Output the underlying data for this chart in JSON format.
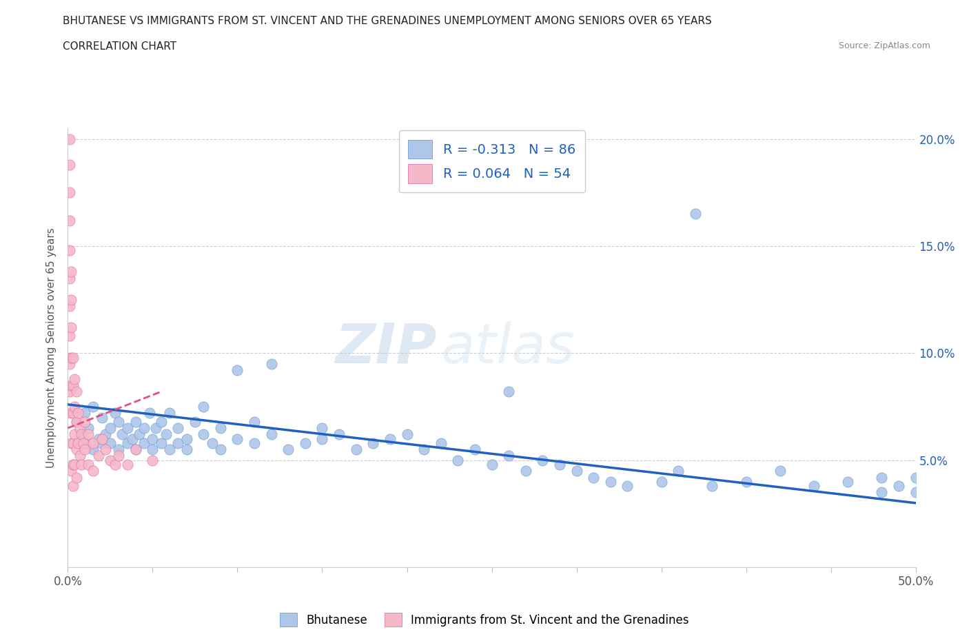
{
  "title_line1": "BHUTANESE VS IMMIGRANTS FROM ST. VINCENT AND THE GRENADINES UNEMPLOYMENT AMONG SENIORS OVER 65 YEARS",
  "title_line2": "CORRELATION CHART",
  "source_text": "Source: ZipAtlas.com",
  "ylabel": "Unemployment Among Seniors over 65 years",
  "watermark_zip": "ZIP",
  "watermark_atlas": "atlas",
  "legend_entries": [
    {
      "label": "R = -0.313   N = 86",
      "color": "#aec6e8"
    },
    {
      "label": "R = 0.064   N = 54",
      "color": "#f4b8c8"
    }
  ],
  "legend_labels_bottom": [
    "Bhutanese",
    "Immigrants from St. Vincent and the Grenadines"
  ],
  "xmin": 0.0,
  "xmax": 0.5,
  "ymin": 0.0,
  "ymax": 0.205,
  "xticks": [
    0.0,
    0.05,
    0.1,
    0.15,
    0.2,
    0.25,
    0.3,
    0.35,
    0.4,
    0.45,
    0.5
  ],
  "yticks": [
    0.0,
    0.05,
    0.1,
    0.15,
    0.2
  ],
  "blue_scatter_x": [
    0.005,
    0.008,
    0.01,
    0.01,
    0.012,
    0.015,
    0.015,
    0.018,
    0.02,
    0.02,
    0.022,
    0.025,
    0.025,
    0.028,
    0.03,
    0.03,
    0.032,
    0.035,
    0.035,
    0.038,
    0.04,
    0.04,
    0.042,
    0.045,
    0.045,
    0.048,
    0.05,
    0.05,
    0.052,
    0.055,
    0.055,
    0.058,
    0.06,
    0.06,
    0.065,
    0.065,
    0.07,
    0.07,
    0.075,
    0.08,
    0.08,
    0.085,
    0.09,
    0.09,
    0.1,
    0.1,
    0.11,
    0.11,
    0.12,
    0.12,
    0.13,
    0.14,
    0.15,
    0.15,
    0.16,
    0.17,
    0.18,
    0.19,
    0.2,
    0.21,
    0.22,
    0.23,
    0.24,
    0.25,
    0.26,
    0.27,
    0.28,
    0.29,
    0.3,
    0.31,
    0.32,
    0.33,
    0.35,
    0.36,
    0.38,
    0.4,
    0.42,
    0.44,
    0.46,
    0.48,
    0.48,
    0.49,
    0.5,
    0.5,
    0.26,
    0.37
  ],
  "blue_scatter_y": [
    0.068,
    0.062,
    0.058,
    0.072,
    0.065,
    0.055,
    0.075,
    0.06,
    0.058,
    0.07,
    0.062,
    0.065,
    0.058,
    0.072,
    0.055,
    0.068,
    0.062,
    0.058,
    0.065,
    0.06,
    0.055,
    0.068,
    0.062,
    0.058,
    0.065,
    0.072,
    0.055,
    0.06,
    0.065,
    0.058,
    0.068,
    0.062,
    0.055,
    0.072,
    0.058,
    0.065,
    0.06,
    0.055,
    0.068,
    0.062,
    0.075,
    0.058,
    0.065,
    0.055,
    0.06,
    0.092,
    0.058,
    0.068,
    0.062,
    0.095,
    0.055,
    0.058,
    0.065,
    0.06,
    0.062,
    0.055,
    0.058,
    0.06,
    0.062,
    0.055,
    0.058,
    0.05,
    0.055,
    0.048,
    0.052,
    0.045,
    0.05,
    0.048,
    0.045,
    0.042,
    0.04,
    0.038,
    0.04,
    0.045,
    0.038,
    0.04,
    0.045,
    0.038,
    0.04,
    0.035,
    0.042,
    0.038,
    0.042,
    0.035,
    0.082,
    0.165
  ],
  "blue_trend_x": [
    0.0,
    0.5
  ],
  "blue_trend_y": [
    0.076,
    0.03
  ],
  "pink_scatter_x": [
    0.001,
    0.001,
    0.001,
    0.001,
    0.001,
    0.001,
    0.001,
    0.001,
    0.001,
    0.001,
    0.002,
    0.002,
    0.002,
    0.002,
    0.002,
    0.002,
    0.002,
    0.002,
    0.003,
    0.003,
    0.003,
    0.003,
    0.003,
    0.003,
    0.004,
    0.004,
    0.004,
    0.004,
    0.005,
    0.005,
    0.005,
    0.005,
    0.006,
    0.006,
    0.007,
    0.007,
    0.008,
    0.008,
    0.009,
    0.01,
    0.01,
    0.012,
    0.012,
    0.015,
    0.015,
    0.018,
    0.02,
    0.022,
    0.025,
    0.028,
    0.03,
    0.035,
    0.04,
    0.05
  ],
  "pink_scatter_y": [
    0.2,
    0.188,
    0.175,
    0.162,
    0.148,
    0.135,
    0.122,
    0.108,
    0.095,
    0.082,
    0.138,
    0.125,
    0.112,
    0.098,
    0.085,
    0.072,
    0.058,
    0.045,
    0.098,
    0.085,
    0.072,
    0.058,
    0.048,
    0.038,
    0.088,
    0.075,
    0.062,
    0.048,
    0.082,
    0.068,
    0.055,
    0.042,
    0.072,
    0.058,
    0.065,
    0.052,
    0.062,
    0.048,
    0.058,
    0.068,
    0.055,
    0.062,
    0.048,
    0.058,
    0.045,
    0.052,
    0.06,
    0.055,
    0.05,
    0.048,
    0.052,
    0.048,
    0.055,
    0.05
  ],
  "pink_trend_x": [
    0.0,
    0.055
  ],
  "pink_trend_y": [
    0.065,
    0.082
  ],
  "blue_color": "#aec6e8",
  "pink_color": "#f4b8c8",
  "blue_edge_color": "#5590d0",
  "pink_edge_color": "#e060a0",
  "blue_line_color": "#2060c0",
  "pink_line_color": "#e05080",
  "background_color": "#ffffff",
  "grid_color": "#cccccc",
  "title_color": "#222222",
  "axis_label_color": "#555555",
  "tick_label_color": "#555555",
  "right_ytick_color": "#2060c0",
  "source_color": "#888888"
}
